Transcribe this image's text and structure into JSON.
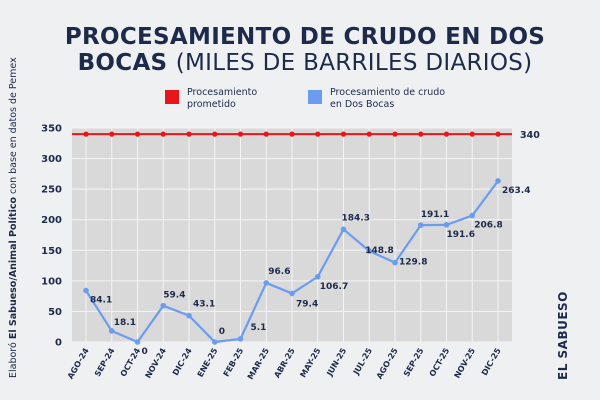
{
  "header": {
    "title": "PROCESAMIENTO DE CRUDO EN DOS BOCAS",
    "subtitle": "(MILES DE BARRILES DIARIOS)"
  },
  "legend": {
    "promised_label": "Procesamiento prometido",
    "actual_label": "Procesamiento de crudo en Dos Bocas"
  },
  "credit": {
    "prefix": "Elaboró ",
    "bold": "El Sabueso/Animal Político",
    "suffix": " con base en datos de Pemex"
  },
  "brand": "EL SABUESO",
  "colors": {
    "background": "#eef0f2",
    "plot_bg": "#d9d9d9",
    "promised": "#e8161b",
    "actual": "#6b9cf0",
    "text": "#1e2a4a"
  },
  "chart_data": {
    "type": "line",
    "title": "PROCESAMIENTO DE CRUDO EN DOS BOCAS (MILES DE BARRILES DIARIOS)",
    "xlabel": "",
    "ylabel": "",
    "categories": [
      "AGO-24",
      "SEP-24",
      "OCT-24",
      "NOV-24",
      "DIC-24",
      "ENE-25",
      "FEB-25",
      "MAR-25",
      "ABR-25",
      "MAY-25",
      "JUN-25",
      "JUL-25",
      "AGO-25",
      "SEP-25",
      "OCT-25",
      "NOV-25",
      "DIC-25"
    ],
    "ylim": [
      0,
      350
    ],
    "yticks": [
      0,
      50,
      100,
      150,
      200,
      250,
      300,
      350
    ],
    "series": [
      {
        "name": "Procesamiento prometido",
        "values": [
          340,
          340,
          340,
          340,
          340,
          340,
          340,
          340,
          340,
          340,
          340,
          340,
          340,
          340,
          340,
          340,
          340
        ],
        "end_label": "340"
      },
      {
        "name": "Procesamiento de crudo en Dos Bocas",
        "values": [
          84.1,
          18.1,
          0,
          59.4,
          43.1,
          0,
          5.1,
          96.6,
          79.4,
          106.7,
          184.3,
          148.8,
          129.8,
          191.1,
          191.6,
          206.8,
          263.4
        ],
        "labels": [
          "84.1",
          "18.1",
          "0",
          "59.4",
          "43.1",
          "0",
          "5.1",
          "96.6",
          "79.4",
          "106.7",
          "184.3",
          "148.8",
          "129.8",
          "191.1",
          "191.6",
          "206.8",
          "263.4"
        ]
      }
    ],
    "grid": true,
    "legend_position": "top"
  }
}
